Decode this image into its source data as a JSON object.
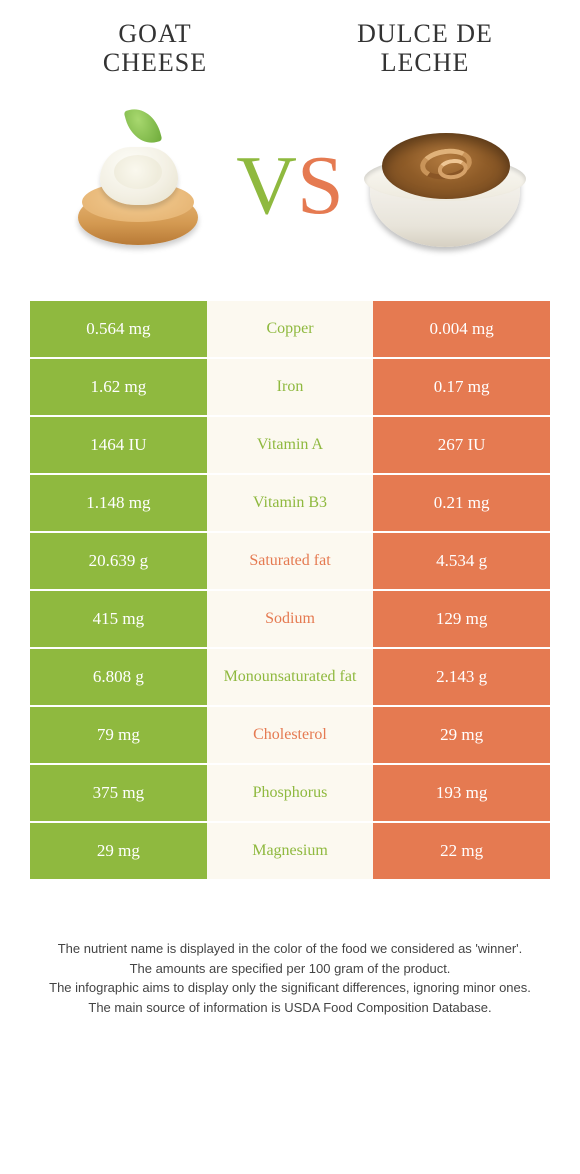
{
  "leftFood": {
    "title": "GOAT\nCHEESE"
  },
  "rightFood": {
    "title": "DULCE DE\nLECHE"
  },
  "colors": {
    "left": "#8fb93f",
    "right": "#e57a51",
    "midBg": "#fcf9f0",
    "textDark": "#333333"
  },
  "vs": {
    "v": "V",
    "s": "S"
  },
  "rows": [
    {
      "left": "0.564 mg",
      "label": "Copper",
      "right": "0.004 mg",
      "winner": "left"
    },
    {
      "left": "1.62 mg",
      "label": "Iron",
      "right": "0.17 mg",
      "winner": "left"
    },
    {
      "left": "1464 IU",
      "label": "Vitamin A",
      "right": "267 IU",
      "winner": "left"
    },
    {
      "left": "1.148 mg",
      "label": "Vitamin B3",
      "right": "0.21 mg",
      "winner": "left"
    },
    {
      "left": "20.639 g",
      "label": "Saturated fat",
      "right": "4.534 g",
      "winner": "right"
    },
    {
      "left": "415 mg",
      "label": "Sodium",
      "right": "129 mg",
      "winner": "right"
    },
    {
      "left": "6.808 g",
      "label": "Monounsaturated fat",
      "right": "2.143 g",
      "winner": "left"
    },
    {
      "left": "79 mg",
      "label": "Cholesterol",
      "right": "29 mg",
      "winner": "right"
    },
    {
      "left": "375 mg",
      "label": "Phosphorus",
      "right": "193 mg",
      "winner": "left"
    },
    {
      "left": "29 mg",
      "label": "Magnesium",
      "right": "22 mg",
      "winner": "left"
    }
  ],
  "footer": {
    "line1": "The nutrient name is displayed in the color of the food we considered as 'winner'.",
    "line2": "The amounts are specified per 100 gram of the product.",
    "line3": "The infographic aims to display only the significant differences, ignoring minor ones.",
    "line4": "The main source of information is USDA Food Composition Database."
  }
}
